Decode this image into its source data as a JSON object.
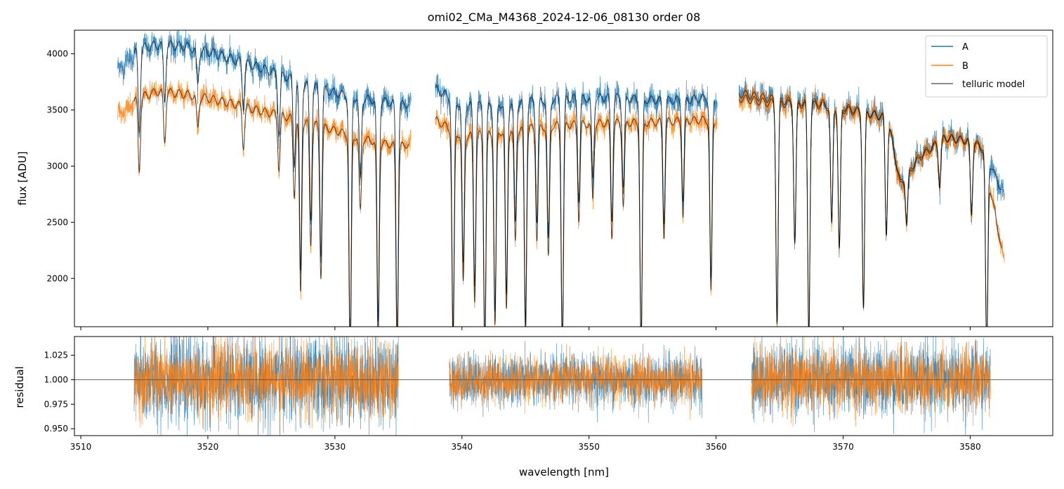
{
  "title": "omi02_CMa_M4368_2024-12-06_08130  order 08",
  "colors": {
    "A": "#1f77b4",
    "B": "#ff7f0e",
    "telluric": "#000000",
    "reference_line": "#555555"
  },
  "legend": {
    "placement": "upper-right",
    "entries": [
      {
        "key": "A",
        "label": "A"
      },
      {
        "key": "B",
        "label": "B"
      },
      {
        "key": "telluric",
        "label": "telluric model"
      }
    ]
  },
  "chart_data": [
    {
      "type": "line",
      "panel": "flux",
      "xlabel": "",
      "ylabel": "flux [ADU]",
      "xlim": [
        3509.5,
        3586.5
      ],
      "ylim": [
        1570,
        4210
      ],
      "yticks": [
        2000,
        2500,
        3000,
        3500,
        4000
      ],
      "xticks": [
        3510,
        3520,
        3530,
        3540,
        3550,
        3560,
        3570,
        3580
      ],
      "show_xtick_labels": false,
      "segments": [
        {
          "x0": 3512.9,
          "x1": 3536.0
        },
        {
          "x0": 3537.9,
          "x1": 3560.1
        },
        {
          "x0": 3561.8,
          "x1": 3582.7
        }
      ],
      "series": [
        {
          "name": "A",
          "continuum": [
            [
              3513.0,
              3900
            ],
            [
              3514.5,
              4080
            ],
            [
              3516,
              4120
            ],
            [
              3518,
              4110
            ],
            [
              3520,
              4060
            ],
            [
              3522,
              3990
            ],
            [
              3524,
              3920
            ],
            [
              3526,
              3840
            ],
            [
              3528,
              3760
            ],
            [
              3530,
              3690
            ],
            [
              3532,
              3640
            ],
            [
              3534,
              3610
            ],
            [
              3535.5,
              3580
            ],
            [
              3538,
              3720
            ],
            [
              3540,
              3580
            ],
            [
              3542,
              3570
            ],
            [
              3544,
              3600
            ],
            [
              3546,
              3620
            ],
            [
              3548,
              3640
            ],
            [
              3550,
              3640
            ],
            [
              3552,
              3650
            ],
            [
              3554,
              3630
            ],
            [
              3556,
              3620
            ],
            [
              3558,
              3630
            ],
            [
              3560,
              3650
            ],
            [
              3562,
              3680
            ],
            [
              3564,
              3640
            ],
            [
              3566,
              3610
            ],
            [
              3568,
              3600
            ],
            [
              3570,
              3560
            ],
            [
              3572,
              3510
            ],
            [
              3573.5,
              3470
            ],
            [
              3574.5,
              2880
            ],
            [
              3576,
              3120
            ],
            [
              3578,
              3290
            ],
            [
              3580,
              3260
            ],
            [
              3581,
              3200
            ],
            [
              3582.7,
              2750
            ]
          ]
        },
        {
          "name": "B",
          "continuum": [
            [
              3513.0,
              3500
            ],
            [
              3514.5,
              3640
            ],
            [
              3516,
              3700
            ],
            [
              3518,
              3680
            ],
            [
              3520,
              3640
            ],
            [
              3522,
              3590
            ],
            [
              3524,
              3530
            ],
            [
              3526,
              3480
            ],
            [
              3528,
              3420
            ],
            [
              3530,
              3350
            ],
            [
              3532,
              3280
            ],
            [
              3534,
              3230
            ],
            [
              3535.5,
              3210
            ],
            [
              3538,
              3440
            ],
            [
              3540,
              3300
            ],
            [
              3542,
              3320
            ],
            [
              3544,
              3350
            ],
            [
              3546,
              3380
            ],
            [
              3548,
              3400
            ],
            [
              3550,
              3410
            ],
            [
              3552,
              3420
            ],
            [
              3554,
              3420
            ],
            [
              3556,
              3430
            ],
            [
              3558,
              3440
            ],
            [
              3560,
              3450
            ],
            [
              3562,
              3640
            ],
            [
              3564,
              3600
            ],
            [
              3566,
              3590
            ],
            [
              3568,
              3580
            ],
            [
              3570,
              3540
            ],
            [
              3572,
              3500
            ],
            [
              3573.5,
              3460
            ],
            [
              3574.5,
              2860
            ],
            [
              3576,
              3100
            ],
            [
              3578,
              3280
            ],
            [
              3580,
              3250
            ],
            [
              3581,
              3180
            ],
            [
              3582.7,
              2150
            ]
          ]
        }
      ],
      "absorption_lines": [
        {
          "x": 3514.6,
          "depth": 0.18
        },
        {
          "x": 3516.6,
          "depth": 0.12
        },
        {
          "x": 3519.2,
          "depth": 0.08
        },
        {
          "x": 3522.8,
          "depth": 0.1
        },
        {
          "x": 3525.6,
          "depth": 0.14
        },
        {
          "x": 3526.8,
          "depth": 0.2
        },
        {
          "x": 3527.3,
          "depth": 0.45
        },
        {
          "x": 3528.1,
          "depth": 0.32
        },
        {
          "x": 3528.9,
          "depth": 0.4
        },
        {
          "x": 3531.2,
          "depth": 0.62
        },
        {
          "x": 3532.0,
          "depth": 0.2
        },
        {
          "x": 3533.4,
          "depth": 0.55
        },
        {
          "x": 3534.9,
          "depth": 0.58
        },
        {
          "x": 3539.3,
          "depth": 0.58
        },
        {
          "x": 3540.1,
          "depth": 0.4
        },
        {
          "x": 3541.0,
          "depth": 0.45
        },
        {
          "x": 3541.8,
          "depth": 0.6
        },
        {
          "x": 3542.6,
          "depth": 0.52
        },
        {
          "x": 3543.5,
          "depth": 0.48
        },
        {
          "x": 3544.2,
          "depth": 0.3
        },
        {
          "x": 3545.0,
          "depth": 0.55
        },
        {
          "x": 3545.9,
          "depth": 0.3
        },
        {
          "x": 3546.8,
          "depth": 0.35
        },
        {
          "x": 3547.9,
          "depth": 0.6
        },
        {
          "x": 3549.2,
          "depth": 0.25
        },
        {
          "x": 3550.3,
          "depth": 0.2
        },
        {
          "x": 3551.8,
          "depth": 0.3
        },
        {
          "x": 3552.7,
          "depth": 0.22
        },
        {
          "x": 3554.1,
          "depth": 0.6
        },
        {
          "x": 3555.9,
          "depth": 0.3
        },
        {
          "x": 3557.4,
          "depth": 0.25
        },
        {
          "x": 3559.6,
          "depth": 0.45
        },
        {
          "x": 3564.8,
          "depth": 0.55
        },
        {
          "x": 3566.2,
          "depth": 0.35
        },
        {
          "x": 3567.3,
          "depth": 0.58
        },
        {
          "x": 3569.1,
          "depth": 0.3
        },
        {
          "x": 3569.7,
          "depth": 0.36
        },
        {
          "x": 3571.6,
          "depth": 0.5
        },
        {
          "x": 3573.4,
          "depth": 0.3
        },
        {
          "x": 3575.0,
          "depth": 0.15
        },
        {
          "x": 3577.6,
          "depth": 0.12
        },
        {
          "x": 3580.1,
          "depth": 0.2
        },
        {
          "x": 3581.3,
          "depth": 0.55
        }
      ]
    },
    {
      "type": "line",
      "panel": "residual",
      "xlabel": "wavelength [nm]",
      "ylabel": "residual",
      "xlim": [
        3509.5,
        3586.5
      ],
      "ylim": [
        0.943,
        1.044
      ],
      "yticks": [
        0.95,
        0.975,
        1.0,
        1.025
      ],
      "ytick_labels": [
        "0.950",
        "0.975",
        "1.000",
        "1.025"
      ],
      "xticks": [
        3510,
        3520,
        3530,
        3540,
        3550,
        3560,
        3570,
        3580
      ],
      "xtick_labels": [
        "3510",
        "3520",
        "3530",
        "3540",
        "3550",
        "3560",
        "3570",
        "3580"
      ],
      "reference_line": 1.0,
      "segments": [
        {
          "x0": 3514.2,
          "x1": 3535.0,
          "scatter_A": 0.022,
          "scatter_B": 0.018
        },
        {
          "x0": 3539.0,
          "x1": 3558.9,
          "scatter_A": 0.013,
          "scatter_B": 0.012
        },
        {
          "x0": 3562.8,
          "x1": 3581.6,
          "scatter_A": 0.018,
          "scatter_B": 0.016
        }
      ]
    }
  ],
  "flux_tick_labels": [
    "2000",
    "2500",
    "3000",
    "3500",
    "4000"
  ]
}
